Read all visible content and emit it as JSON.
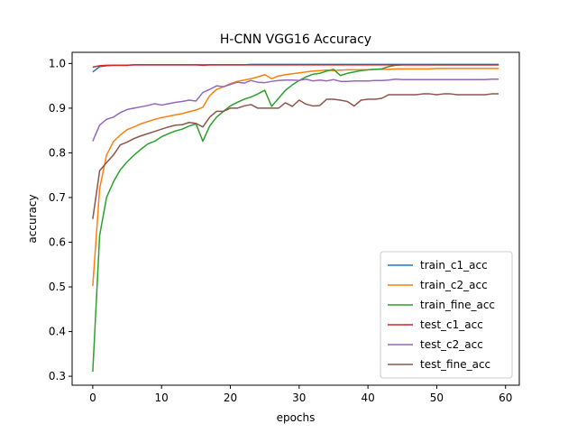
{
  "chart_data": {
    "type": "line",
    "title": "H-CNN VGG16 Accuracy",
    "xlabel": "epochs",
    "ylabel": "accuracy",
    "xlim": [
      -3,
      62
    ],
    "ylim": [
      0.28,
      1.025
    ],
    "xticks": [
      0,
      10,
      20,
      30,
      40,
      50,
      60
    ],
    "yticks": [
      0.3,
      0.4,
      0.5,
      0.6,
      0.7,
      0.8,
      0.9,
      1.0
    ],
    "ytick_labels": [
      "0.3",
      "0.4",
      "0.5",
      "0.6",
      "0.7",
      "0.8",
      "0.9",
      "1.0"
    ],
    "grid": false,
    "legend_position": "lower-right",
    "x": [
      0,
      1,
      2,
      3,
      4,
      5,
      6,
      7,
      8,
      9,
      10,
      11,
      12,
      13,
      14,
      15,
      16,
      17,
      18,
      19,
      20,
      21,
      22,
      23,
      24,
      25,
      26,
      27,
      28,
      29,
      30,
      31,
      32,
      33,
      34,
      35,
      36,
      37,
      38,
      39,
      40,
      41,
      42,
      43,
      44,
      45,
      46,
      47,
      48,
      49,
      50,
      51,
      52,
      53,
      54,
      55,
      56,
      57,
      58,
      59
    ],
    "series": [
      {
        "name": "train_c1_acc",
        "color": "#1f77b4",
        "values": [
          0.981,
          0.993,
          0.995,
          0.996,
          0.996,
          0.996,
          0.997,
          0.997,
          0.997,
          0.997,
          0.997,
          0.997,
          0.997,
          0.997,
          0.997,
          0.997,
          0.997,
          0.997,
          0.997,
          0.997,
          0.997,
          0.997,
          0.997,
          0.998,
          0.998,
          0.998,
          0.998,
          0.998,
          0.998,
          0.998,
          0.998,
          0.998,
          0.998,
          0.998,
          0.998,
          0.998,
          0.998,
          0.998,
          0.998,
          0.998,
          0.998,
          0.998,
          0.998,
          0.998,
          0.998,
          0.998,
          0.998,
          0.998,
          0.998,
          0.998,
          0.998,
          0.998,
          0.998,
          0.998,
          0.998,
          0.998,
          0.998,
          0.998,
          0.998,
          0.998
        ]
      },
      {
        "name": "train_c2_acc",
        "color": "#ff7f0e",
        "values": [
          0.502,
          0.72,
          0.795,
          0.825,
          0.84,
          0.852,
          0.858,
          0.865,
          0.87,
          0.875,
          0.879,
          0.882,
          0.885,
          0.888,
          0.892,
          0.896,
          0.902,
          0.928,
          0.942,
          0.948,
          0.955,
          0.96,
          0.963,
          0.966,
          0.97,
          0.975,
          0.966,
          0.972,
          0.975,
          0.977,
          0.979,
          0.981,
          0.983,
          0.984,
          0.985,
          0.984,
          0.985,
          0.986,
          0.986,
          0.986,
          0.986,
          0.987,
          0.987,
          0.987,
          0.988,
          0.988,
          0.988,
          0.988,
          0.988,
          0.988,
          0.989,
          0.989,
          0.989,
          0.989,
          0.989,
          0.989,
          0.989,
          0.989,
          0.989,
          0.989
        ]
      },
      {
        "name": "train_fine_acc",
        "color": "#2ca02c",
        "values": [
          0.31,
          0.615,
          0.7,
          0.735,
          0.762,
          0.78,
          0.795,
          0.808,
          0.82,
          0.826,
          0.836,
          0.843,
          0.849,
          0.853,
          0.86,
          0.865,
          0.826,
          0.86,
          0.88,
          0.893,
          0.905,
          0.913,
          0.92,
          0.925,
          0.932,
          0.94,
          0.904,
          0.922,
          0.94,
          0.952,
          0.962,
          0.97,
          0.976,
          0.978,
          0.983,
          0.987,
          0.973,
          0.978,
          0.981,
          0.984,
          0.986,
          0.987,
          0.988,
          0.993,
          0.996,
          0.997,
          0.997,
          0.997,
          0.997,
          0.997,
          0.997,
          0.997,
          0.997,
          0.997,
          0.997,
          0.997,
          0.997,
          0.997,
          0.997,
          0.997
        ]
      },
      {
        "name": "test_c1_acc",
        "color": "#d62728",
        "values": [
          0.992,
          0.995,
          0.996,
          0.996,
          0.996,
          0.996,
          0.997,
          0.997,
          0.997,
          0.997,
          0.997,
          0.997,
          0.997,
          0.997,
          0.997,
          0.997,
          0.996,
          0.997,
          0.997,
          0.997,
          0.997,
          0.997,
          0.997,
          0.997,
          0.997,
          0.997,
          0.997,
          0.997,
          0.997,
          0.997,
          0.997,
          0.997,
          0.997,
          0.997,
          0.997,
          0.997,
          0.997,
          0.997,
          0.997,
          0.997,
          0.997,
          0.997,
          0.997,
          0.997,
          0.997,
          0.997,
          0.997,
          0.997,
          0.997,
          0.997,
          0.997,
          0.997,
          0.997,
          0.997,
          0.997,
          0.997,
          0.997,
          0.997,
          0.997,
          0.997
        ]
      },
      {
        "name": "test_c2_acc",
        "color": "#9467bd",
        "values": [
          0.826,
          0.862,
          0.875,
          0.88,
          0.89,
          0.897,
          0.9,
          0.903,
          0.906,
          0.91,
          0.907,
          0.91,
          0.913,
          0.915,
          0.918,
          0.916,
          0.935,
          0.942,
          0.95,
          0.948,
          0.953,
          0.958,
          0.956,
          0.962,
          0.958,
          0.957,
          0.96,
          0.962,
          0.963,
          0.963,
          0.962,
          0.965,
          0.961,
          0.963,
          0.961,
          0.964,
          0.96,
          0.96,
          0.961,
          0.961,
          0.961,
          0.962,
          0.962,
          0.963,
          0.965,
          0.964,
          0.964,
          0.964,
          0.964,
          0.964,
          0.964,
          0.964,
          0.964,
          0.964,
          0.964,
          0.964,
          0.964,
          0.964,
          0.965,
          0.965
        ]
      },
      {
        "name": "test_fine_acc",
        "color": "#8c564b",
        "values": [
          0.652,
          0.76,
          0.778,
          0.795,
          0.818,
          0.824,
          0.832,
          0.838,
          0.843,
          0.848,
          0.853,
          0.858,
          0.862,
          0.863,
          0.868,
          0.866,
          0.858,
          0.88,
          0.893,
          0.893,
          0.9,
          0.9,
          0.905,
          0.908,
          0.9,
          0.9,
          0.9,
          0.9,
          0.912,
          0.904,
          0.918,
          0.909,
          0.905,
          0.906,
          0.92,
          0.92,
          0.918,
          0.915,
          0.905,
          0.918,
          0.92,
          0.92,
          0.922,
          0.93,
          0.93,
          0.93,
          0.93,
          0.93,
          0.932,
          0.932,
          0.93,
          0.932,
          0.932,
          0.93,
          0.93,
          0.93,
          0.93,
          0.93,
          0.932,
          0.932
        ]
      }
    ]
  }
}
